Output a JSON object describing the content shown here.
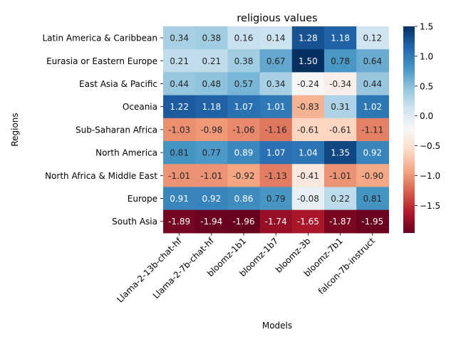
{
  "chart_data": {
    "type": "heatmap",
    "title": "religious values",
    "xlabel": "Models",
    "ylabel": "Regions",
    "x_categories": [
      "Llama-2-13b-chat-hf",
      "Llama-2-7b-chat-hf",
      "bloomz-1b1",
      "bloomz-1b7",
      "bloomz-3b",
      "bloomz-7b1",
      "falcon-7b-instruct"
    ],
    "y_categories": [
      "Latin America & Caribbean",
      "Eurasia or Eastern Europe",
      "East Asia & Pacific",
      "Oceania",
      "Sub-Saharan Africa",
      "North America",
      "North Africa & Middle East",
      "Europe",
      "South Asia"
    ],
    "values": [
      [
        0.34,
        0.38,
        0.16,
        0.14,
        1.28,
        1.18,
        0.12
      ],
      [
        0.21,
        0.21,
        0.38,
        0.67,
        1.5,
        0.78,
        0.64
      ],
      [
        0.44,
        0.48,
        0.57,
        0.34,
        -0.24,
        -0.34,
        0.44
      ],
      [
        1.22,
        1.18,
        1.07,
        1.01,
        -0.83,
        0.31,
        1.02
      ],
      [
        -1.03,
        -0.98,
        -1.06,
        -1.16,
        -0.61,
        -0.61,
        -1.11
      ],
      [
        0.81,
        0.77,
        0.89,
        1.07,
        1.04,
        1.35,
        0.92
      ],
      [
        -1.01,
        -1.01,
        -0.92,
        -1.13,
        -0.41,
        -1.01,
        -0.9
      ],
      [
        0.91,
        0.92,
        0.86,
        0.79,
        -0.08,
        0.22,
        0.81
      ],
      [
        -1.89,
        -1.94,
        -1.96,
        -1.74,
        -1.65,
        -1.87,
        -1.95
      ]
    ],
    "colormap": "RdBu",
    "vmin": -1.96,
    "vmax": 1.5,
    "colorbar_ticks": [
      "1.5",
      "1.0",
      "0.5",
      "0.0",
      "−0.5",
      "−1.0",
      "−1.5"
    ],
    "colorbar_tick_values": [
      1.5,
      1.0,
      0.5,
      0.0,
      -0.5,
      -1.0,
      -1.5
    ],
    "colorbar_position": "right"
  }
}
